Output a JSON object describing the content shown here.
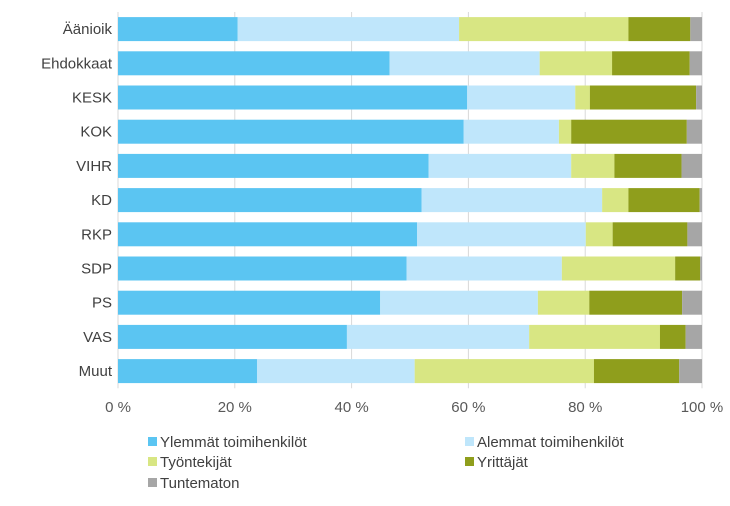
{
  "chart_data": {
    "type": "bar",
    "orientation": "horizontal",
    "stacked": true,
    "percent": true,
    "title": "",
    "xlabel": "",
    "ylabel": "",
    "xlim": [
      0,
      100
    ],
    "x_ticks": [
      "0 %",
      "20 %",
      "40 %",
      "60 %",
      "80 %",
      "100 %"
    ],
    "categories": [
      "Äänioik",
      "Ehdokkaat",
      "KESK",
      "KOK",
      "VIHR",
      "KD",
      "RKP",
      "SDP",
      "PS",
      "VAS",
      "Muut"
    ],
    "series": [
      {
        "name": "Ylemmät toimihenkilöt",
        "color": "#5bc5f2",
        "values": [
          20.5,
          46.5,
          59.8,
          59.2,
          53.2,
          52.0,
          51.2,
          49.4,
          44.9,
          39.2,
          23.8
        ]
      },
      {
        "name": "Alemmat toimihenkilöt",
        "color": "#bfe6fb",
        "values": [
          37.9,
          25.7,
          18.5,
          16.3,
          24.4,
          30.9,
          28.9,
          26.6,
          27.0,
          31.2,
          27.0
        ]
      },
      {
        "name": "Työntekijät",
        "color": "#d8e683",
        "values": [
          29.0,
          12.4,
          2.5,
          2.1,
          7.4,
          4.5,
          4.6,
          19.4,
          8.8,
          22.4,
          30.7
        ]
      },
      {
        "name": "Yrittäjät",
        "color": "#8f9e1c",
        "values": [
          10.6,
          13.3,
          18.2,
          19.8,
          11.5,
          12.2,
          12.8,
          4.3,
          15.9,
          4.4,
          14.6
        ]
      },
      {
        "name": "Tuntematon",
        "color": "#a6a6a6",
        "values": [
          2.0,
          2.1,
          1.0,
          2.6,
          3.5,
          0.4,
          2.5,
          0.3,
          3.4,
          2.8,
          3.9
        ]
      }
    ],
    "grid": true,
    "legend_position": "bottom"
  }
}
